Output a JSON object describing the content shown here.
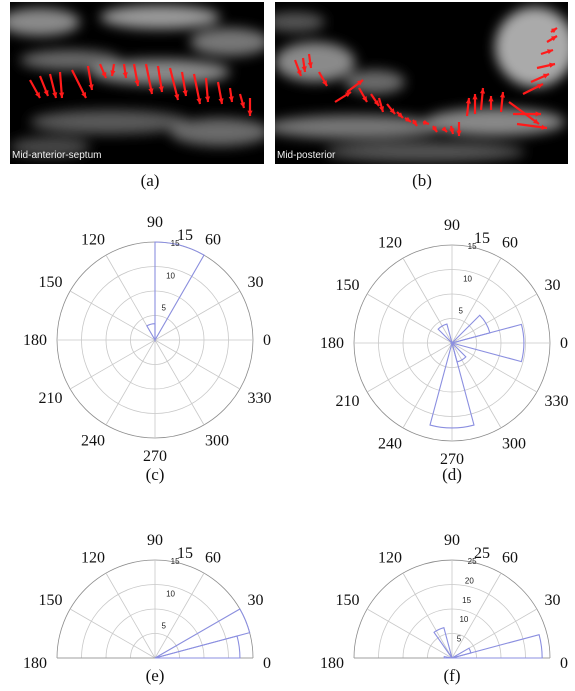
{
  "figure": {
    "panels": [
      {
        "id": "a",
        "caption": "(a)",
        "kind": "image",
        "overlay_label": "Mid-anterior-septum",
        "arrow_color": "#ff1a1a"
      },
      {
        "id": "b",
        "caption": "(b)",
        "kind": "image",
        "overlay_label": "Mid-posterior",
        "arrow_color": "#ff1a1a"
      },
      {
        "id": "c",
        "caption": "(c)",
        "kind": "polar"
      },
      {
        "id": "d",
        "caption": "(d)",
        "kind": "polar"
      },
      {
        "id": "e",
        "caption": "(e)",
        "kind": "polar"
      },
      {
        "id": "f",
        "caption": "(f)",
        "kind": "polar"
      }
    ],
    "colors": {
      "grid": "#c8c8c8",
      "outer_circle": "#8c8c8c",
      "rose": "#8b8fe0",
      "text": "#111111"
    }
  },
  "chart_data": [
    {
      "panel": "c",
      "type": "polar_histogram",
      "angular_range": [
        0,
        360
      ],
      "angle_labels": [
        "0",
        "30",
        "60",
        "90",
        "120",
        "150",
        "180",
        "210",
        "240",
        "270",
        "300",
        "330"
      ],
      "radial_ticks": [
        5,
        10,
        15
      ],
      "rmax": 15,
      "bins": [
        {
          "from": 60,
          "to": 90,
          "value": 15
        },
        {
          "from": 90,
          "to": 120,
          "value": 2.5
        }
      ]
    },
    {
      "panel": "d",
      "type": "polar_histogram",
      "angular_range": [
        0,
        360
      ],
      "angle_labels": [
        "0",
        "30",
        "60",
        "90",
        "120",
        "150",
        "180",
        "210",
        "240",
        "270",
        "300",
        "330"
      ],
      "radial_ticks": [
        5,
        10,
        15
      ],
      "rmax": 15,
      "bins": [
        {
          "from": -15,
          "to": 15,
          "value": 11
        },
        {
          "from": 15,
          "to": 45,
          "value": 6
        },
        {
          "from": 105,
          "to": 135,
          "value": 3
        },
        {
          "from": 255,
          "to": 285,
          "value": 13
        },
        {
          "from": 285,
          "to": 315,
          "value": 3
        }
      ]
    },
    {
      "panel": "e",
      "type": "polar_histogram",
      "angular_range": [
        0,
        180
      ],
      "angle_labels": [
        "0",
        "30",
        "60",
        "90",
        "120",
        "150",
        "180"
      ],
      "radial_ticks": [
        5,
        10,
        15
      ],
      "rmax": 15,
      "bins": [
        {
          "from": 0,
          "to": 15,
          "value": 13
        },
        {
          "from": 15,
          "to": 30,
          "value": 15
        }
      ]
    },
    {
      "panel": "f",
      "type": "polar_histogram",
      "angular_range": [
        0,
        180
      ],
      "angle_labels": [
        "0",
        "30",
        "60",
        "90",
        "120",
        "150",
        "180"
      ],
      "radial_ticks": [
        5,
        10,
        15,
        20,
        25
      ],
      "rmax": 25,
      "bins": [
        {
          "from": 0,
          "to": 15,
          "value": 23
        },
        {
          "from": 15,
          "to": 30,
          "value": 5
        },
        {
          "from": 105,
          "to": 125,
          "value": 8
        },
        {
          "from": 170,
          "to": 180,
          "value": 2
        }
      ]
    }
  ]
}
